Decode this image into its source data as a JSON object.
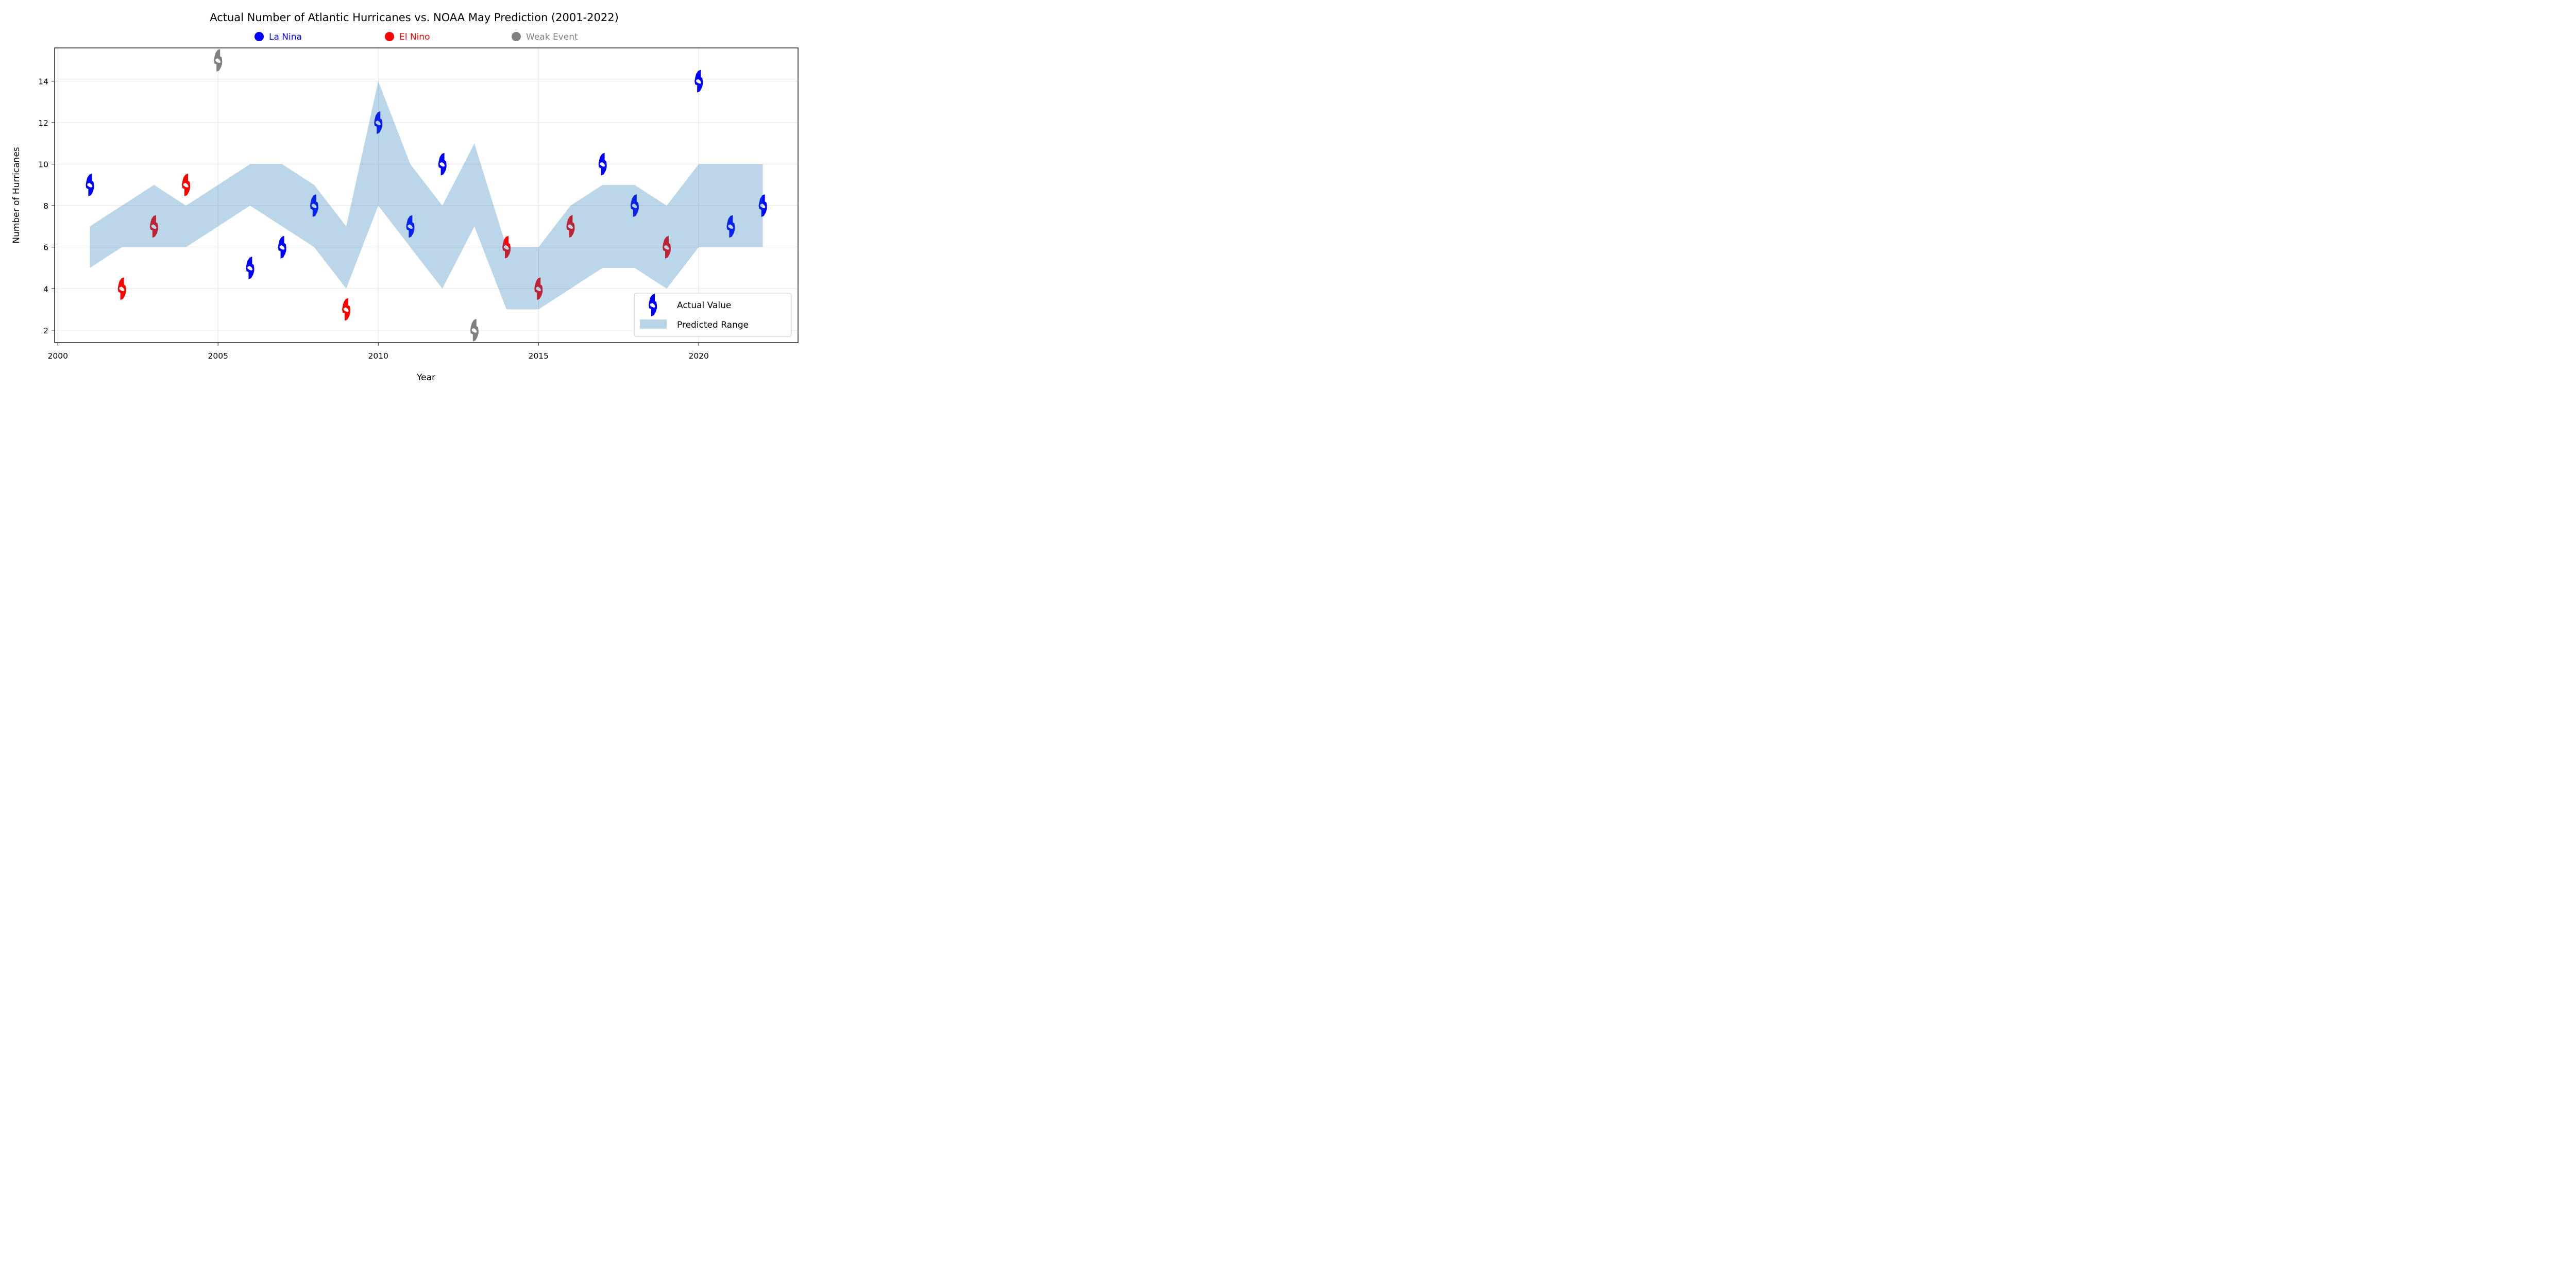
{
  "chart_data": {
    "type": "scatter",
    "title": "Actual Number of Atlantic Hurricanes vs. NOAA May Prediction (2001-2022)",
    "xlabel": "Year",
    "ylabel": "Number of Hurricanes",
    "xlim": [
      1999.9,
      2023.1
    ],
    "ylim": [
      1.4,
      15.6
    ],
    "xticks": [
      2000,
      2005,
      2010,
      2015,
      2020
    ],
    "yticks": [
      2,
      4,
      6,
      8,
      10,
      12,
      14
    ],
    "grid": true,
    "years": [
      2001,
      2002,
      2003,
      2004,
      2005,
      2006,
      2007,
      2008,
      2009,
      2010,
      2011,
      2012,
      2013,
      2014,
      2015,
      2016,
      2017,
      2018,
      2019,
      2020,
      2021,
      2022
    ],
    "actual": [
      9,
      4,
      7,
      9,
      15,
      5,
      6,
      8,
      3,
      12,
      7,
      10,
      2,
      6,
      4,
      7,
      10,
      8,
      6,
      14,
      7,
      8
    ],
    "enso": [
      "La Nina",
      "El Nino",
      "El Nino",
      "El Nino",
      "Weak Event",
      "La Nina",
      "La Nina",
      "La Nina",
      "El Nino",
      "La Nina",
      "La Nina",
      "La Nina",
      "Weak Event",
      "El Nino",
      "El Nino",
      "El Nino",
      "La Nina",
      "La Nina",
      "El Nino",
      "La Nina",
      "La Nina",
      "La Nina"
    ],
    "predicted_low": [
      5,
      6,
      6,
      6,
      7,
      8,
      7,
      6,
      4,
      8,
      6,
      4,
      7,
      3,
      3,
      4,
      5,
      5,
      4,
      6,
      6,
      6
    ],
    "predicted_high": [
      7,
      8,
      9,
      8,
      9,
      10,
      10,
      9,
      7,
      14,
      10,
      8,
      11,
      6,
      6,
      8,
      9,
      9,
      8,
      10,
      10,
      10
    ],
    "category_legend": {
      "placement": "top-center",
      "entries": [
        {
          "label": "La Nina",
          "color": "#0000ff"
        },
        {
          "label": "El Nino",
          "color": "#ff0000"
        },
        {
          "label": "Weak Event",
          "color": "#808080"
        }
      ]
    },
    "legend": {
      "placement": "lower-right",
      "entries": [
        {
          "label": "Actual Value",
          "kind": "marker",
          "color": "#0000ff"
        },
        {
          "label": "Predicted Range",
          "kind": "patch",
          "color": "#bbd5e8"
        }
      ]
    },
    "colors": {
      "La Nina": "#0000ff",
      "El Nino": "#ff0000",
      "Weak Event": "#808080",
      "range_fill": "#1f77b4",
      "range_alpha": 0.3,
      "grid": "#e6e6e6"
    }
  }
}
